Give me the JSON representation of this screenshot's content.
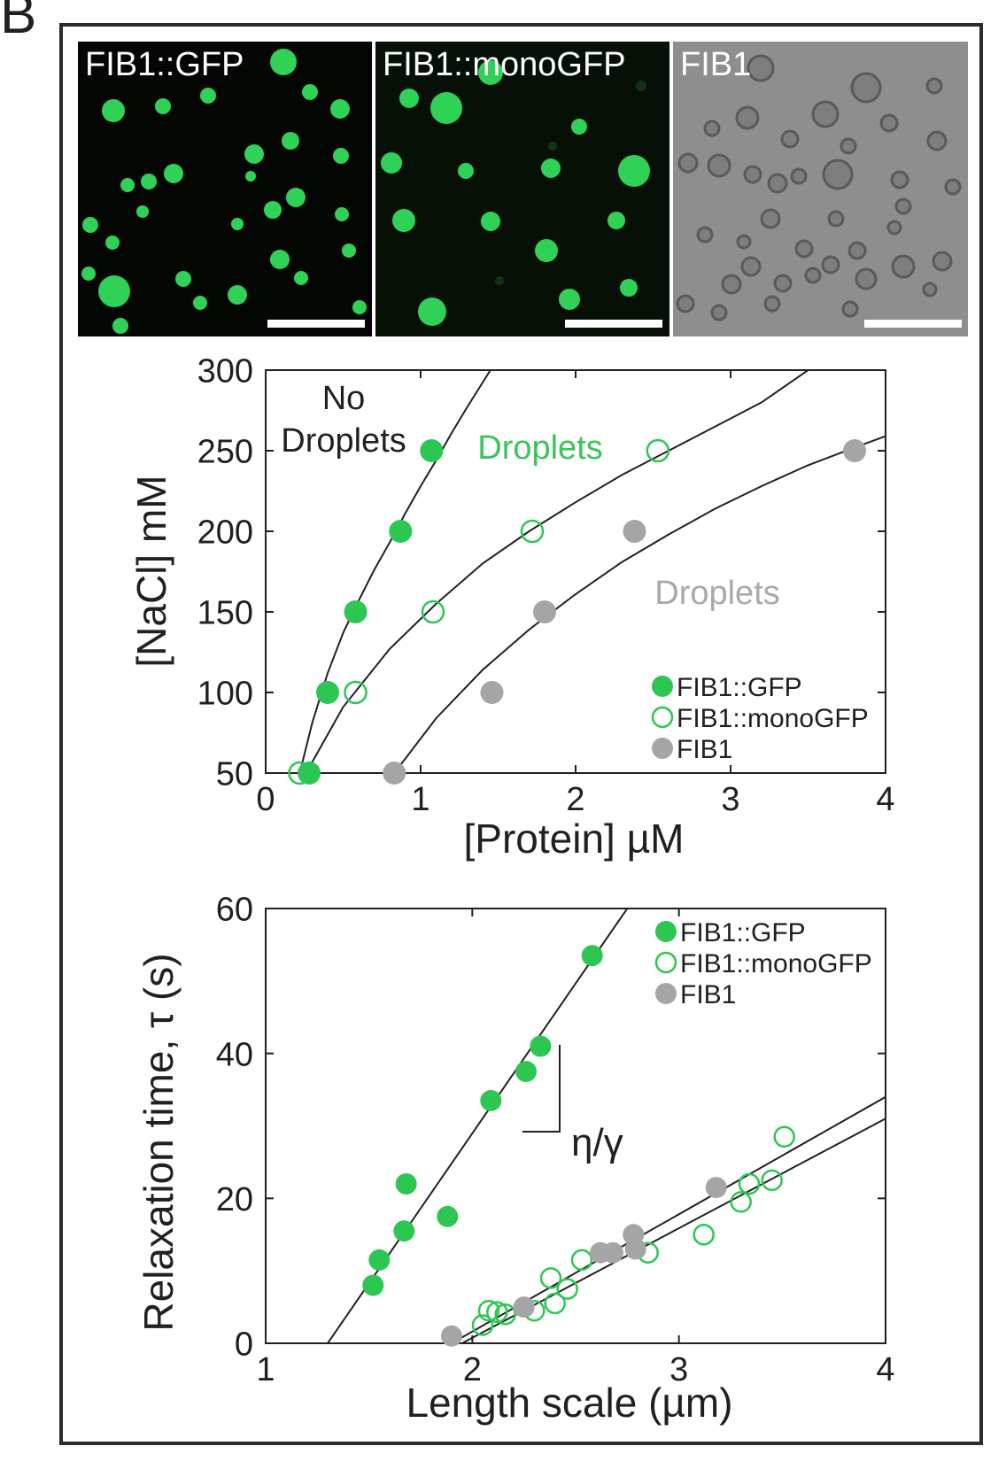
{
  "figure": {
    "panel_label": "B",
    "micrographs": [
      {
        "label": "FIB1::GFP",
        "style": "fluorescence"
      },
      {
        "label": "FIB1::monoGFP",
        "style": "fluorescence"
      },
      {
        "label": "FIB1",
        "style": "brightfield"
      }
    ]
  },
  "colors": {
    "green": "#2dc653",
    "gray": "#a5a5a5",
    "region_green": "#3cc45a",
    "region_gray": "#a9a9a9",
    "axis": "#231f20"
  },
  "chart_data": [
    {
      "type": "scatter",
      "xlabel": "[Protein] µM",
      "ylabel": "[NaCl] mM",
      "xlim": [
        0,
        4
      ],
      "ylim": [
        50,
        300
      ],
      "xticks": [
        0,
        1,
        2,
        3,
        4
      ],
      "yticks": [
        50,
        100,
        150,
        200,
        250,
        300
      ],
      "grid": false,
      "legend_position": "lower-right",
      "annotations": [
        {
          "text": "No",
          "color": "axis"
        },
        {
          "text": "Droplets",
          "color": "axis"
        },
        {
          "text": "Droplets",
          "color": "region_green"
        },
        {
          "text": "Droplets",
          "color": "region_gray"
        }
      ],
      "series": [
        {
          "name": "FIB1::GFP",
          "marker": "filled",
          "color": "green",
          "x": [
            0.28,
            0.4,
            0.58,
            0.87,
            1.07
          ],
          "y": [
            50,
            100,
            150,
            200,
            250
          ]
        },
        {
          "name": "FIB1::monoGFP",
          "marker": "open",
          "color": "green",
          "x": [
            0.22,
            0.58,
            1.08,
            1.72,
            2.53
          ],
          "y": [
            50,
            100,
            150,
            200,
            250
          ]
        },
        {
          "name": "FIB1",
          "marker": "filled",
          "color": "gray",
          "x": [
            0.83,
            1.46,
            1.8,
            2.38,
            3.8
          ],
          "y": [
            50,
            100,
            150,
            200,
            250
          ]
        }
      ],
      "fit_curves": [
        {
          "x": [
            0.22,
            0.3,
            0.4,
            0.5,
            0.6,
            0.7,
            0.8,
            0.9,
            1.0,
            1.1,
            1.2,
            1.3,
            1.45
          ],
          "y": [
            50,
            81,
            112,
            137,
            157,
            176,
            193,
            211,
            228,
            244,
            261,
            277,
            300
          ]
        },
        {
          "x": [
            0.22,
            0.5,
            0.8,
            1.1,
            1.4,
            1.7,
            2.0,
            2.3,
            2.6,
            2.9,
            3.2,
            3.5
          ],
          "y": [
            43,
            91,
            127,
            155,
            180,
            200,
            218,
            235,
            250,
            265,
            280,
            300
          ]
        },
        {
          "x": [
            0.83,
            1.1,
            1.4,
            1.7,
            2.0,
            2.3,
            2.6,
            2.9,
            3.2,
            3.5,
            3.8,
            4.0
          ],
          "y": [
            50,
            84,
            114,
            139,
            161,
            181,
            198,
            214,
            228,
            241,
            252,
            259
          ]
        }
      ]
    },
    {
      "type": "scatter",
      "xlabel": "Length scale (µm)",
      "ylabel": "Relaxation time, τ (s)",
      "xlim": [
        1,
        4
      ],
      "ylim": [
        0,
        60
      ],
      "xticks": [
        1,
        2,
        3,
        4
      ],
      "yticks": [
        0,
        20,
        40,
        60
      ],
      "grid": false,
      "legend_position": "top-right",
      "slope_label": "η/γ",
      "series": [
        {
          "name": "FIB1::GFP",
          "marker": "filled",
          "color": "green",
          "x": [
            1.52,
            1.55,
            1.67,
            1.68,
            1.88,
            2.09,
            2.26,
            2.33,
            2.58
          ],
          "y": [
            8,
            11.5,
            15.5,
            22,
            17.5,
            33.5,
            37.5,
            41,
            53.5
          ]
        },
        {
          "name": "FIB1::monoGFP",
          "marker": "open",
          "color": "green",
          "x": [
            2.05,
            2.08,
            2.12,
            2.16,
            2.3,
            2.38,
            2.4,
            2.46,
            2.53,
            2.85,
            3.12,
            3.3,
            3.34,
            3.45,
            3.51
          ],
          "y": [
            2.5,
            4.5,
            4.3,
            4,
            4.5,
            9,
            5.5,
            7.5,
            11.5,
            12.5,
            15,
            19.5,
            22,
            22.5,
            28.5
          ]
        },
        {
          "name": "FIB1",
          "marker": "filled",
          "color": "gray",
          "x": [
            1.9,
            2.25,
            2.62,
            2.68,
            2.78,
            2.79,
            3.18
          ],
          "y": [
            1,
            5,
            12.5,
            12.5,
            15,
            13,
            21.5
          ]
        }
      ],
      "fit_lines": [
        {
          "x": [
            1.3,
            2.75
          ],
          "y": [
            0,
            60
          ]
        },
        {
          "x": [
            1.9,
            4.0
          ],
          "y": [
            0,
            34
          ]
        },
        {
          "x": [
            1.95,
            4.0
          ],
          "y": [
            0,
            31
          ]
        }
      ]
    }
  ]
}
